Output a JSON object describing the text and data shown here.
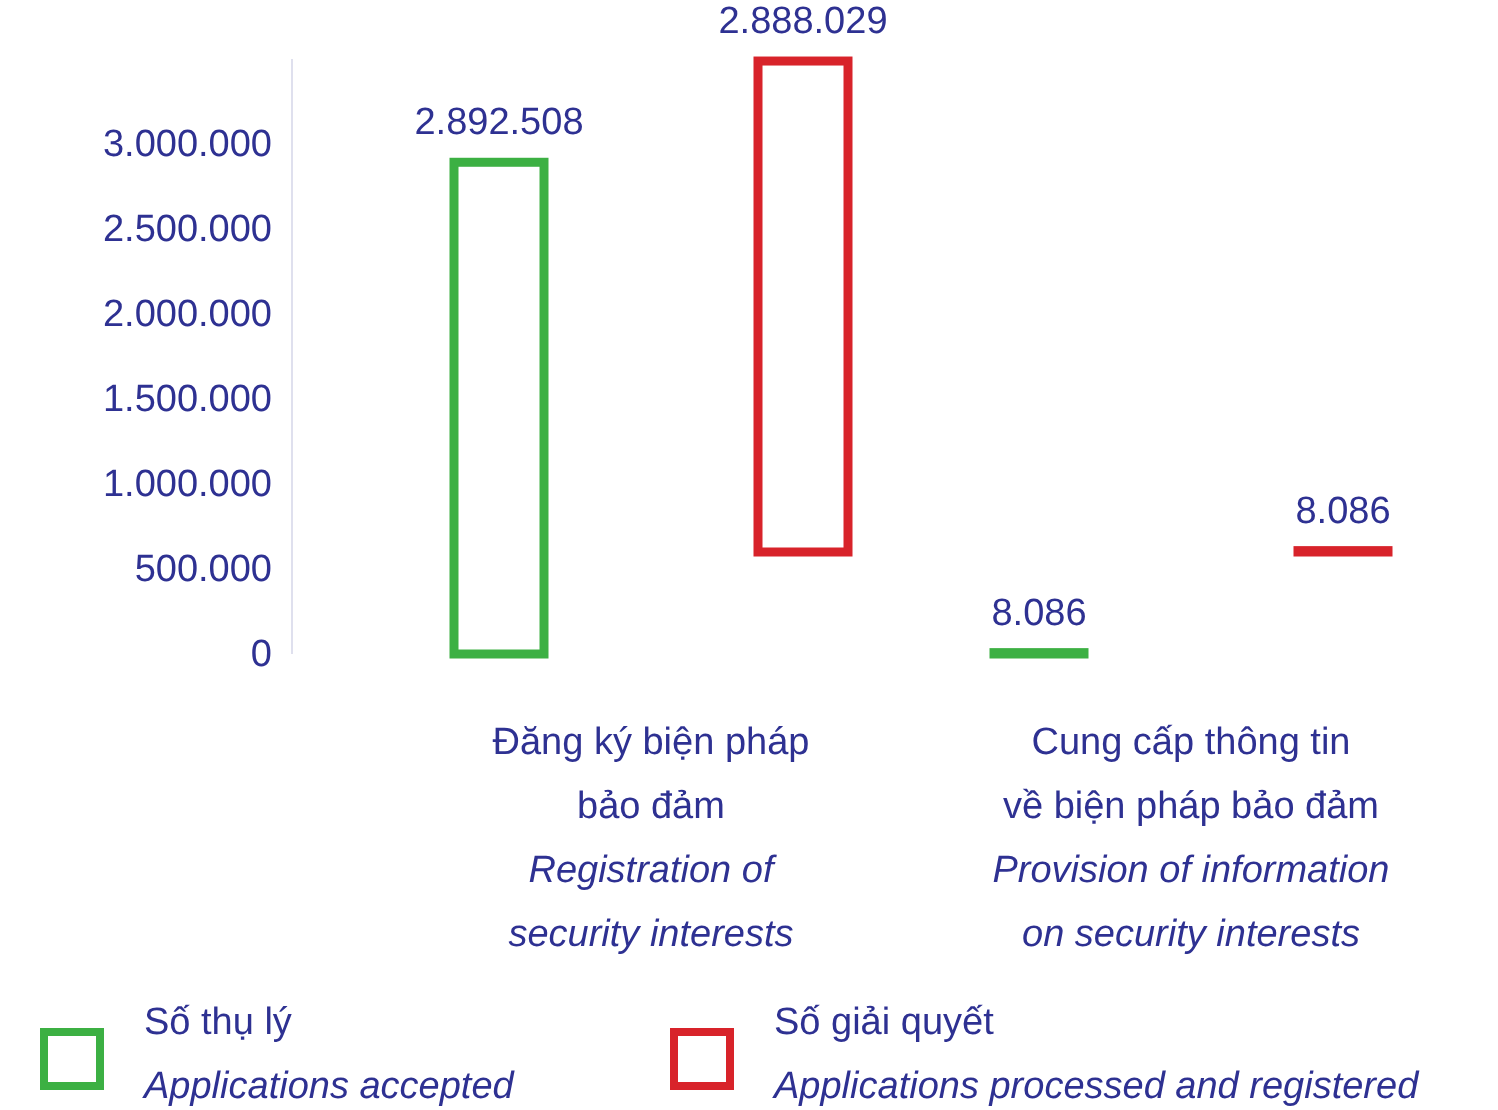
{
  "chart_data": {
    "type": "bar",
    "categories": [
      "Đăng ký biện pháp\nbảo đảm\nRegistration of\nsecurity interests",
      "Cung cấp thông tin\nvề biện pháp bảo đảm\nProvision of information\non security interests"
    ],
    "series": [
      {
        "name": "Số thụ lý\nApplications accepted",
        "color": "#3cb043",
        "values": [
          2892508,
          8086
        ],
        "value_labels": [
          "2.892.508",
          "8.086"
        ]
      },
      {
        "name": "Số giải quyết\nApplications processed and registered",
        "color": "#d8232a",
        "values": [
          2888029,
          8086
        ],
        "base": [
          600000,
          600000
        ],
        "value_labels": [
          "2.888.029",
          "8.086"
        ]
      }
    ],
    "ylim": [
      0,
      3500000
    ],
    "yticks": [
      {
        "value": 0,
        "label": "0"
      },
      {
        "value": 500000,
        "label": "500.000"
      },
      {
        "value": 1000000,
        "label": "1.000.000"
      },
      {
        "value": 1500000,
        "label": "1.500.000"
      },
      {
        "value": 2000000,
        "label": "2.000.000"
      },
      {
        "value": 2500000,
        "label": "2.500.000"
      },
      {
        "value": 3000000,
        "label": "3.000.000"
      }
    ],
    "grid": false,
    "legend": "bottom"
  }
}
